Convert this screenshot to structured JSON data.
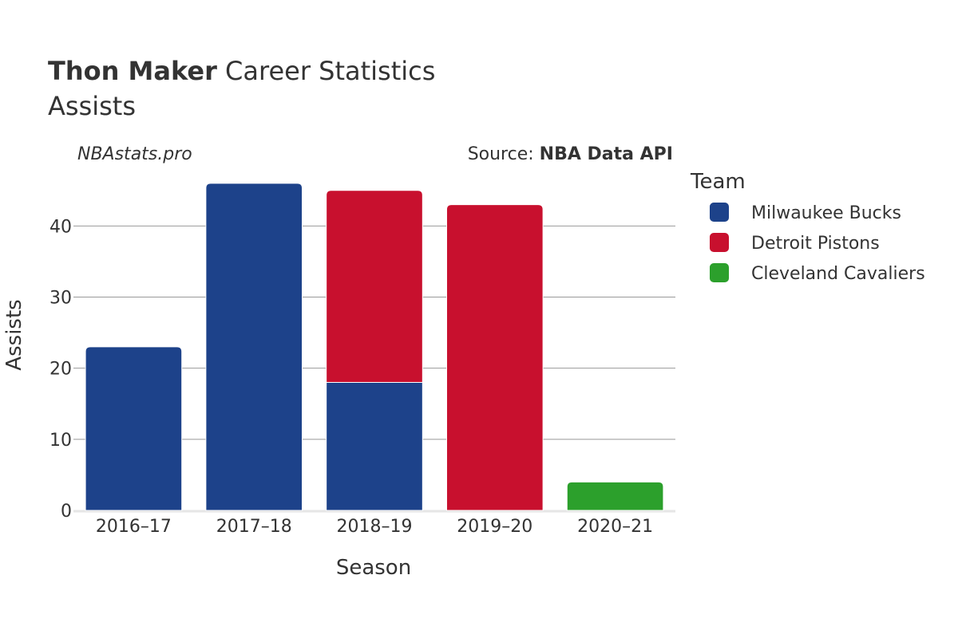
{
  "chart_data": {
    "type": "bar",
    "stacked": true,
    "title_bold": "Thon Maker",
    "title_rest": " Career Statistics",
    "subtitle": "Assists",
    "watermark": "NBAstats.pro",
    "source_prefix": "Source: ",
    "source_name": "NBA Data API",
    "xlabel": "Season",
    "ylabel": "Assists",
    "ylim": [
      0,
      48
    ],
    "yticks": [
      0,
      10,
      20,
      30,
      40
    ],
    "grid": true,
    "legend_title": "Team",
    "legend_position": "right",
    "categories": [
      "2016–17",
      "2017–18",
      "2018–19",
      "2019–20",
      "2020–21"
    ],
    "series": [
      {
        "name": "Milwaukee Bucks",
        "color": "#1d428a",
        "values": [
          23,
          46,
          18,
          0,
          0
        ]
      },
      {
        "name": "Detroit Pistons",
        "color": "#c8102e",
        "values": [
          0,
          0,
          27,
          43,
          0
        ]
      },
      {
        "name": "Cleveland Cavaliers",
        "color": "#2ca02c",
        "values": [
          0,
          0,
          0,
          0,
          4
        ]
      }
    ]
  }
}
